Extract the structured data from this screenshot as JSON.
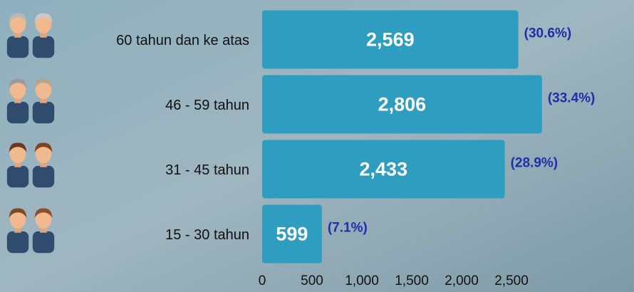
{
  "chart_data": {
    "type": "barh",
    "categories": [
      "60 tahun dan ke atas",
      "46 - 59 tahun",
      "31 - 45 tahun",
      "15 - 30 tahun"
    ],
    "values": [
      2569,
      2806,
      2433,
      599
    ],
    "value_labels": [
      "2,569",
      "2,806",
      "2,433",
      "599"
    ],
    "percent_labels": [
      "(30.6%)",
      "(33.4%)",
      "(28.9%)",
      "(7.1%)"
    ],
    "color": "#2f9dc0",
    "xlim": [
      0,
      3000
    ],
    "xticks": [
      0,
      500,
      {
        "value": 1000,
        "label": "1,000"
      },
      {
        "value": 1500,
        "label": "1,500"
      },
      {
        "value": 2000,
        "label": "2,000"
      },
      {
        "value": 2500,
        "label": "2,500"
      }
    ]
  }
}
